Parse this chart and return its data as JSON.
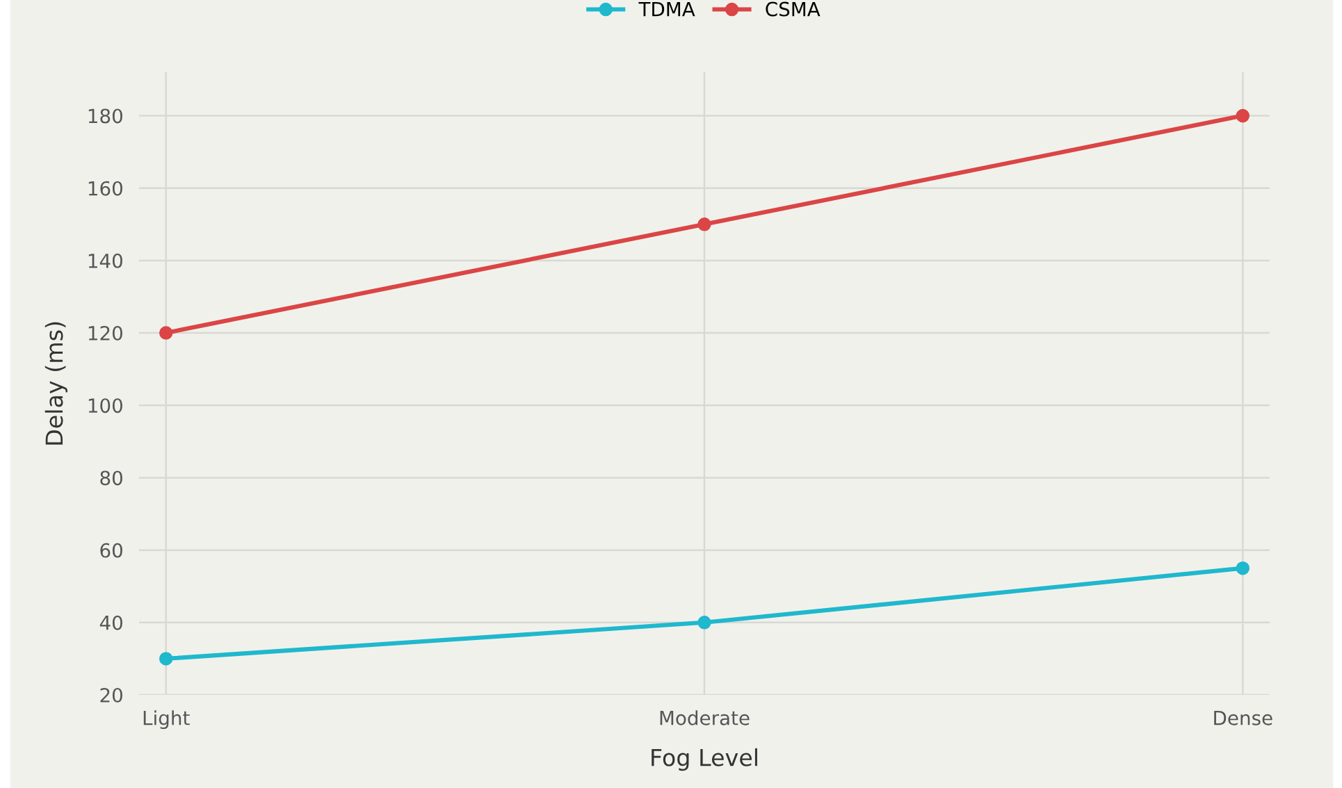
{
  "chart_data": {
    "type": "line",
    "xlabel": "Fog Level",
    "ylabel": "Delay (ms)",
    "categories": [
      "Light",
      "Moderate",
      "Dense"
    ],
    "series": [
      {
        "name": "TDMA",
        "color": "#1fb8cd",
        "values": [
          30,
          40,
          55
        ]
      },
      {
        "name": "CSMA",
        "color": "#db4545",
        "values": [
          120,
          150,
          180
        ]
      }
    ],
    "ylim": [
      20,
      192
    ],
    "yticks": [
      20,
      40,
      60,
      80,
      100,
      120,
      140,
      160,
      180
    ],
    "grid": true,
    "legend": "top",
    "marker": "circle",
    "line_style": "solid"
  }
}
